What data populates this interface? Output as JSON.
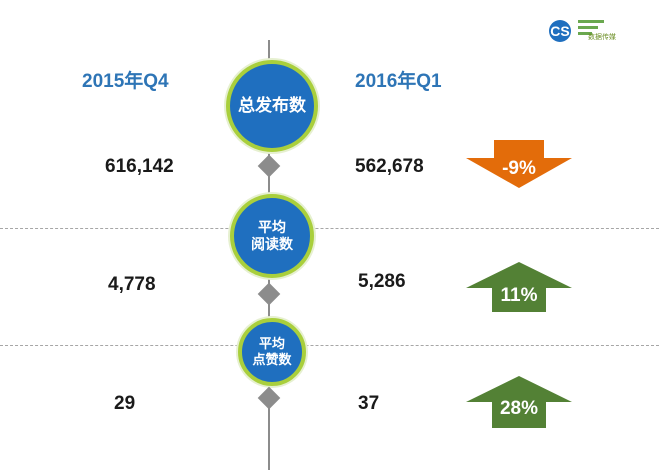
{
  "logo": {
    "text": "CS",
    "tagline": "数据传媒"
  },
  "columns": {
    "left_period": "2015年Q4",
    "right_period": "2016年Q1"
  },
  "metrics": [
    {
      "name": "总发布数",
      "line1": "总发布数",
      "line2": "",
      "left_value": "616,142",
      "right_value": "562,678",
      "change": "-9%",
      "direction": "down",
      "color": "#e36c0a"
    },
    {
      "name": "平均阅读数",
      "line1": "平均",
      "line2": "阅读数",
      "left_value": "4,778",
      "right_value": "5,286",
      "change": "11%",
      "direction": "up",
      "color": "#538135"
    },
    {
      "name": "平均点赞数",
      "line1": "平均",
      "line2": "点赞数",
      "left_value": "29",
      "right_value": "37",
      "change": "28%",
      "direction": "up",
      "color": "#538135"
    }
  ]
}
